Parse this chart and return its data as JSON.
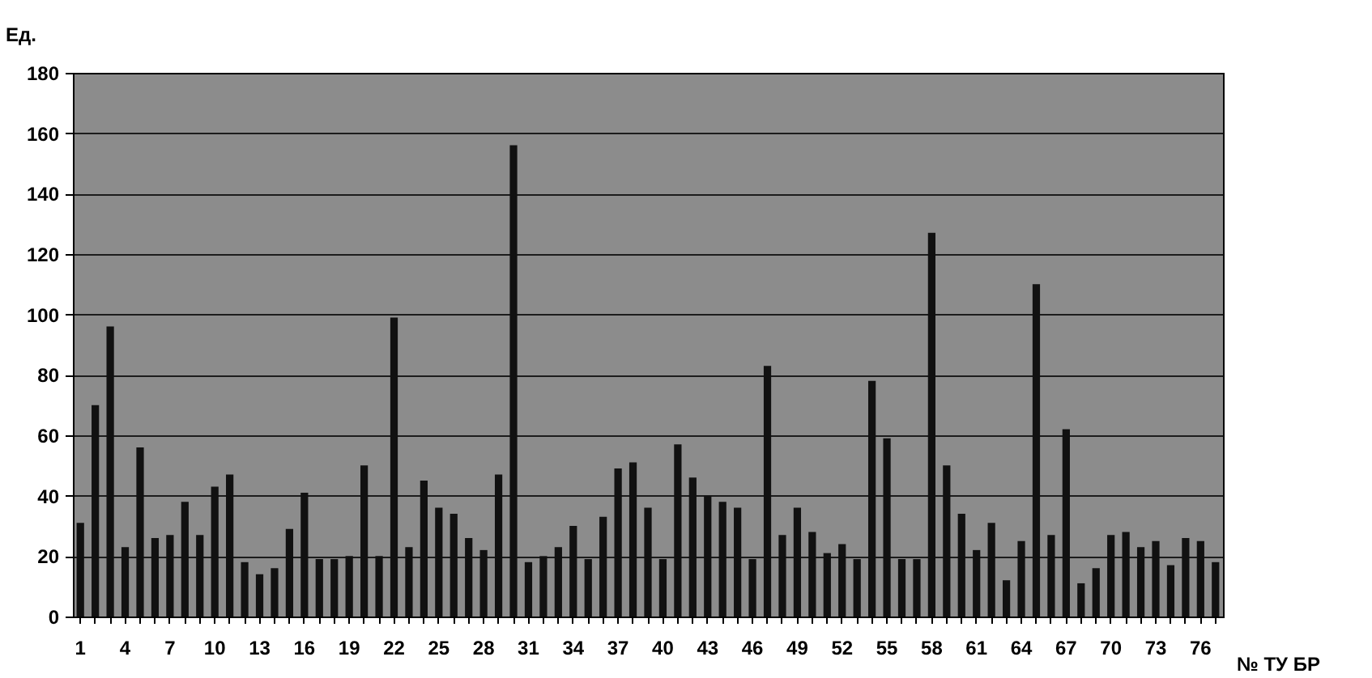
{
  "chart_data": {
    "type": "bar",
    "xlabel": "№ ТУ БР",
    "ylabel": "Ед.",
    "categories": [
      "1",
      null,
      null,
      "4",
      null,
      null,
      "7",
      null,
      null,
      "10",
      null,
      null,
      "13",
      null,
      null,
      "16",
      null,
      null,
      "19",
      null,
      null,
      "22",
      null,
      null,
      "25",
      null,
      null,
      "28",
      null,
      null,
      "31",
      null,
      null,
      "34",
      null,
      null,
      "37",
      null,
      null,
      "40",
      null,
      null,
      "43",
      null,
      null,
      "46",
      null,
      null,
      "49",
      null,
      null,
      "52",
      null,
      null,
      "55",
      null,
      null,
      "58",
      null,
      null,
      "61",
      null,
      null,
      "64",
      null,
      null,
      "67",
      null,
      null,
      "70",
      null,
      null,
      "73",
      null,
      null,
      "76",
      null
    ],
    "values": [
      31,
      70,
      96,
      23,
      56,
      26,
      27,
      38,
      27,
      43,
      47,
      18,
      14,
      16,
      29,
      41,
      19,
      19,
      20,
      50,
      20,
      99,
      23,
      45,
      36,
      34,
      26,
      22,
      47,
      156,
      18,
      20,
      23,
      30,
      19,
      33,
      49,
      51,
      36,
      19,
      57,
      46,
      40,
      38,
      36,
      19,
      83,
      27,
      36,
      28,
      21,
      24,
      19,
      78,
      59,
      19,
      19,
      127,
      50,
      34,
      22,
      31,
      12,
      25,
      110,
      27,
      62,
      11,
      16,
      27,
      28,
      23,
      25,
      17,
      26,
      25,
      18
    ],
    "color": "#111111",
    "ylim": [
      0,
      180
    ],
    "yticks": [
      0,
      20,
      40,
      60,
      80,
      100,
      120,
      140,
      160,
      180
    ],
    "grid": "y"
  }
}
